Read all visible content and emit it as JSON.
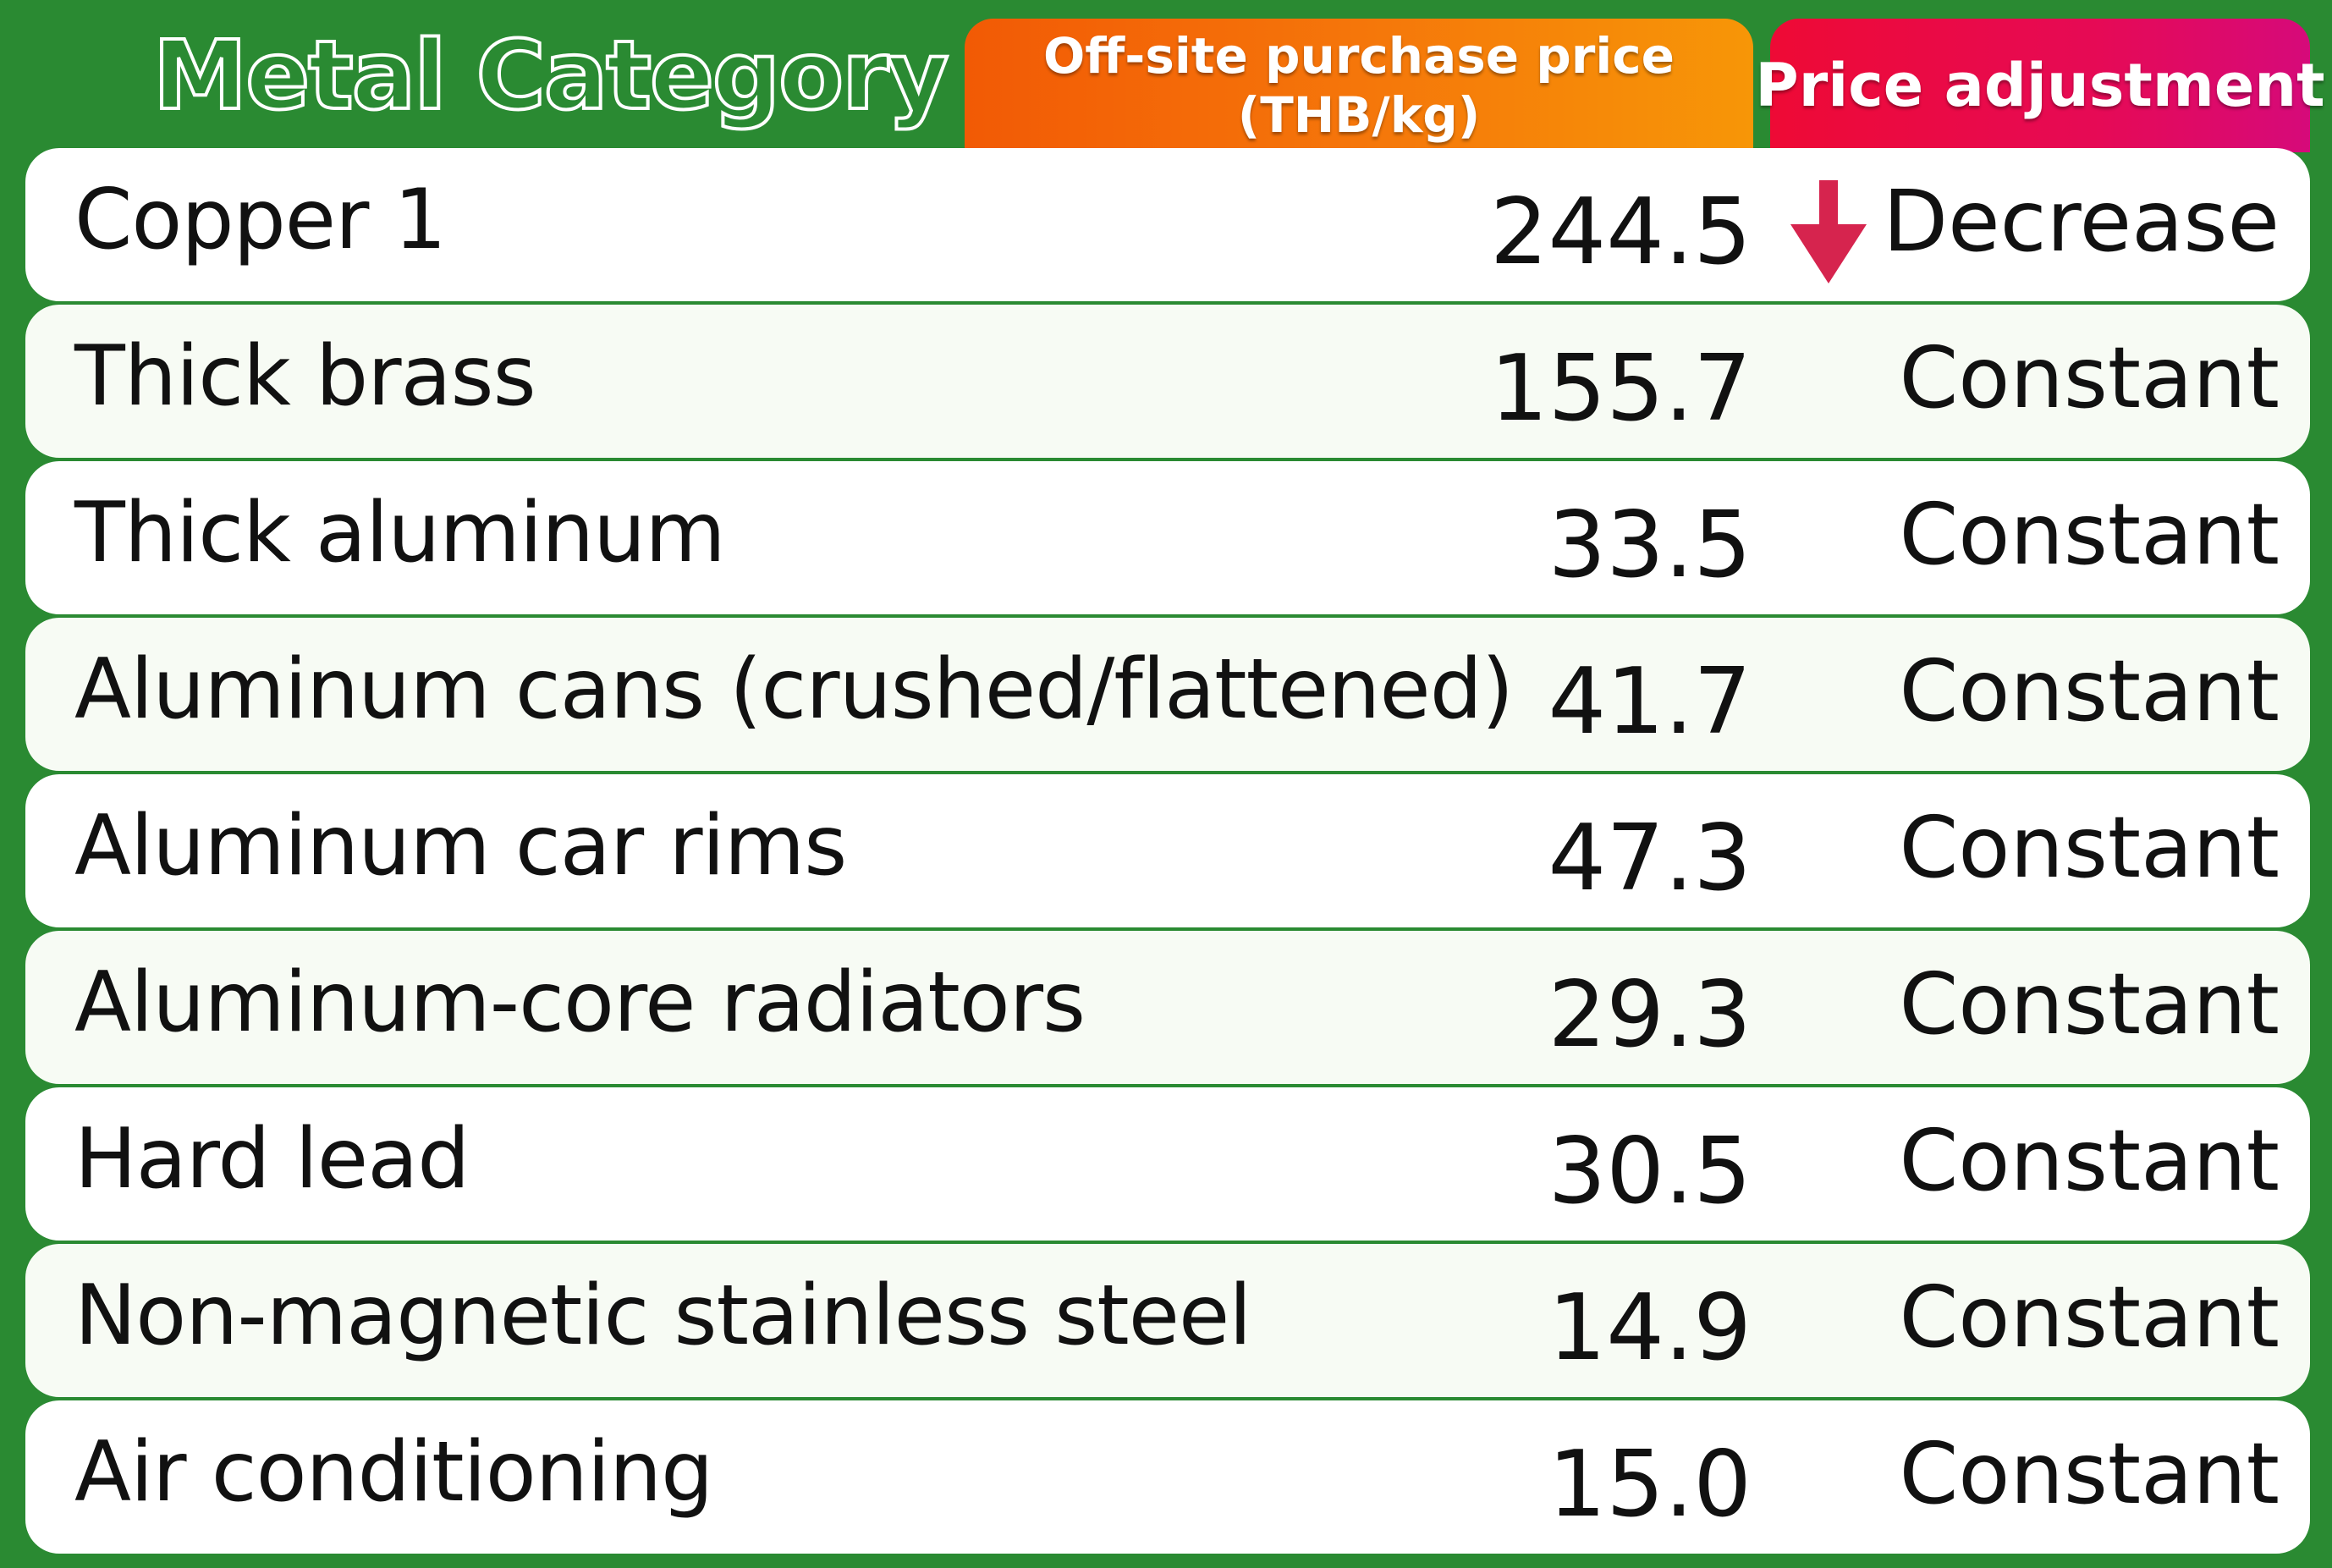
{
  "header": {
    "category_title": "Metal Category",
    "price_title_line1": "Off-site purchase price",
    "price_title_line2": "(THB/kg)",
    "adjustment_title": "Price adjustment"
  },
  "colors": {
    "background": "#2a8a32",
    "price_header": "#f5760a",
    "adjustment_header": "#e60a55",
    "decrease_arrow": "#d6244e"
  },
  "rows": [
    {
      "category": "Copper 1",
      "price": "244.5",
      "adjustment": "Decrease",
      "icon": "arrow-down-icon"
    },
    {
      "category": "Thick brass",
      "price": "155.7",
      "adjustment": "Constant"
    },
    {
      "category": "Thick aluminum",
      "price": "33.5",
      "adjustment": "Constant"
    },
    {
      "category": "Aluminum cans (crushed/flattened)",
      "price": "41.7",
      "adjustment": "Constant"
    },
    {
      "category": "Aluminum car rims",
      "price": "47.3",
      "adjustment": "Constant"
    },
    {
      "category": "Aluminum-core radiators",
      "price": "29.3",
      "adjustment": "Constant"
    },
    {
      "category": "Hard lead",
      "price": "30.5",
      "adjustment": "Constant"
    },
    {
      "category": "Non-magnetic stainless steel",
      "price": "14.9",
      "adjustment": "Constant"
    },
    {
      "category": "Air conditioning",
      "price": "15.0",
      "adjustment": "Constant"
    }
  ]
}
